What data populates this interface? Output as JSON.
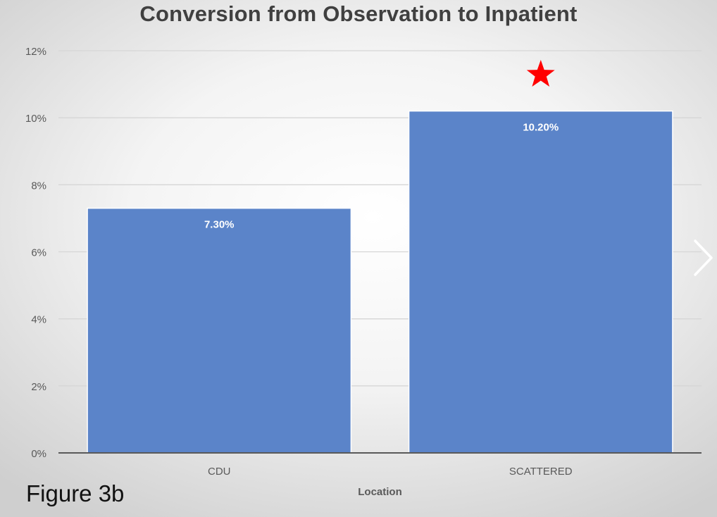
{
  "figure_label": "Figure 3b",
  "navigation": {
    "next_icon": "chevron-right-icon"
  },
  "colors": {
    "bar": "#5b84c9",
    "bar_stroke": "#ffffff",
    "gridline": "#d6d6d6",
    "axis": "#595959",
    "tick_text": "#595959",
    "data_label_text": "#ffffff",
    "star": "#ff0000"
  },
  "chart_data": {
    "type": "bar",
    "title": "Conversion from Observation to Inpatient",
    "xlabel": "Location",
    "ylabel": "",
    "categories": [
      "CDU",
      "SCATTERED"
    ],
    "values": [
      7.3,
      10.2
    ],
    "data_labels": [
      "7.30%",
      "10.20%"
    ],
    "ylim": [
      0,
      12
    ],
    "yticks": [
      0,
      2,
      4,
      6,
      8,
      10,
      12
    ],
    "ytick_labels": [
      "0%",
      "2%",
      "4%",
      "6%",
      "8%",
      "10%",
      "12%"
    ],
    "grid": true,
    "legend": "none",
    "annotations": [
      {
        "category": "SCATTERED",
        "symbol": "star",
        "meaning": "significance marker"
      }
    ]
  }
}
